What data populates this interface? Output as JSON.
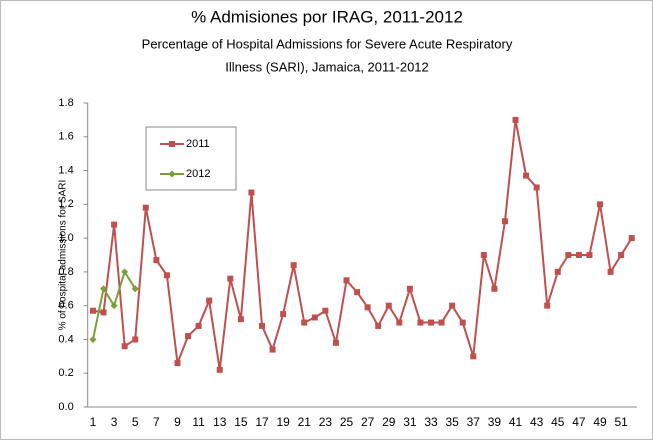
{
  "chart_data": {
    "type": "line",
    "title": "% Admisiones por IRAG, 2011-2012",
    "subtitle": [
      "Percentage of Hospital Admissions for Severe Acute Respiratory",
      "Illness (SARI), Jamaica, 2011-2012"
    ],
    "y_label": "% of hospital admissions  for SARI",
    "categories": [
      1,
      null,
      3,
      null,
      5,
      null,
      7,
      null,
      9,
      null,
      11,
      null,
      13,
      null,
      15,
      null,
      17,
      null,
      19,
      null,
      21,
      null,
      23,
      null,
      25,
      null,
      27,
      null,
      29,
      null,
      31,
      null,
      33,
      null,
      35,
      null,
      37,
      null,
      39,
      null,
      41,
      null,
      43,
      null,
      45,
      null,
      47,
      null,
      49,
      null,
      51,
      null
    ],
    "series": [
      {
        "name": "2011",
        "color": "#c0504d",
        "marker": "square",
        "values": [
          0.57,
          0.56,
          1.08,
          0.36,
          0.4,
          1.18,
          0.87,
          0.78,
          0.26,
          0.42,
          0.48,
          0.63,
          0.22,
          0.76,
          0.52,
          1.27,
          0.48,
          0.34,
          0.55,
          0.84,
          0.5,
          0.53,
          0.57,
          0.38,
          0.75,
          0.68,
          0.59,
          0.48,
          0.6,
          0.5,
          0.7,
          0.5,
          0.5,
          0.5,
          0.6,
          0.5,
          0.3,
          0.9,
          0.7,
          1.1,
          1.7,
          1.37,
          1.3,
          0.6,
          0.8,
          0.9,
          0.9,
          0.9,
          1.2,
          0.8,
          0.9,
          1.0
        ]
      },
      {
        "name": "2012",
        "color": "#77a03a",
        "marker": "diamond",
        "values": [
          0.4,
          0.7,
          0.6,
          0.8,
          0.7,
          null,
          null,
          null,
          null,
          null,
          null,
          null,
          null,
          null,
          null,
          null,
          null,
          null,
          null,
          null,
          null,
          null,
          null,
          null,
          null,
          null,
          null,
          null,
          null,
          null,
          null,
          null,
          null,
          null,
          null,
          null,
          null,
          null,
          null,
          null,
          null,
          null,
          null,
          null,
          null,
          null,
          null,
          null,
          null,
          null,
          null,
          null
        ]
      }
    ],
    "ylim": [
      0,
      1.8
    ],
    "yticks": [
      {
        "value": 0,
        "label": "0.0"
      },
      {
        "value": 0.2,
        "label": "0.2"
      },
      {
        "value": 0.4,
        "label": "0.4"
      },
      {
        "value": 0.6,
        "label": "0.6"
      },
      {
        "value": 0.8,
        "label": "0.8"
      },
      {
        "value": 1,
        "label": "1.0"
      },
      {
        "value": 1.2,
        "label": "1.2"
      },
      {
        "value": 1.4,
        "label": "1.4"
      },
      {
        "value": 1.6,
        "label": "1.6"
      },
      {
        "value": 1.8,
        "label": "1.8"
      }
    ],
    "grid": false,
    "legend": "upper left"
  }
}
